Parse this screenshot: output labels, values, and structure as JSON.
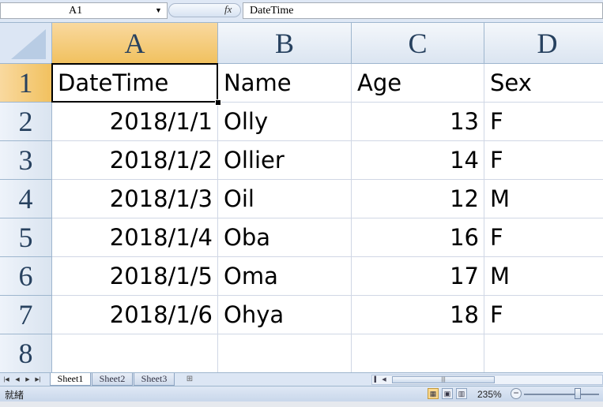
{
  "formula_bar": {
    "name_box": "A1",
    "fx_label": "fx",
    "formula": "DateTime"
  },
  "sheet": {
    "columns": [
      "A",
      "B",
      "C",
      "D"
    ],
    "selected_column": "A",
    "selected_row": "1",
    "active_cell": "A1",
    "rows": [
      {
        "num": "1",
        "cells": [
          "DateTime",
          "Name",
          "Age",
          "Sex"
        ]
      },
      {
        "num": "2",
        "cells": [
          "2018/1/1",
          "Olly",
          "13",
          "F"
        ]
      },
      {
        "num": "3",
        "cells": [
          "2018/1/2",
          "Ollier",
          "14",
          "F"
        ]
      },
      {
        "num": "4",
        "cells": [
          "2018/1/3",
          "Oil",
          "12",
          "M"
        ]
      },
      {
        "num": "5",
        "cells": [
          "2018/1/4",
          "Oba",
          "16",
          "F"
        ]
      },
      {
        "num": "6",
        "cells": [
          "2018/1/5",
          "Oma",
          "17",
          "M"
        ]
      },
      {
        "num": "7",
        "cells": [
          "2018/1/6",
          "Ohya",
          "18",
          "F"
        ]
      },
      {
        "num": "8",
        "cells": [
          "",
          "",
          "",
          ""
        ]
      }
    ]
  },
  "tabs": {
    "sheets": [
      "Sheet1",
      "Sheet2",
      "Sheet3"
    ],
    "active": "Sheet1"
  },
  "status_bar": {
    "status": "就緒",
    "zoom": "235%"
  },
  "colors": {
    "header_bg": "#dce6f4",
    "selected_header": "#f1c15f",
    "grid_line": "#d0d7e5"
  }
}
